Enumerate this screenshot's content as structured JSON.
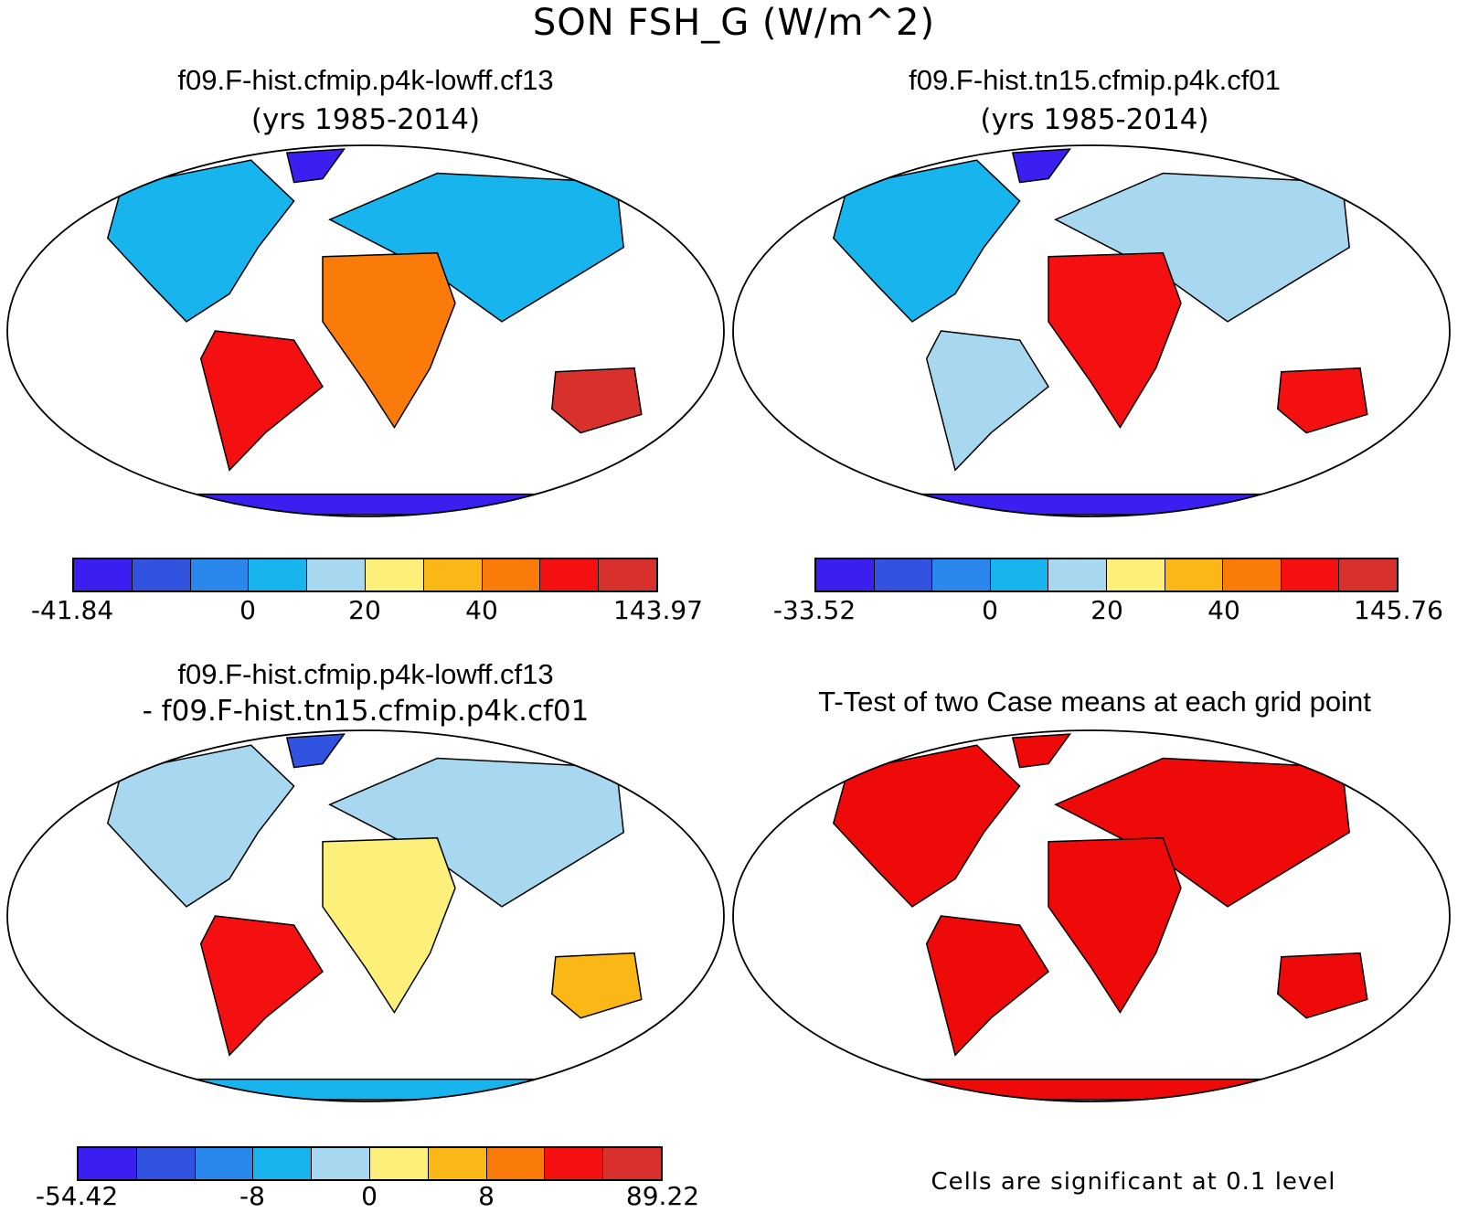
{
  "main_title": "SON FSH_G (W/m^2)",
  "panels": [
    {
      "title": "f09.F-hist.cfmip.p4k-lowff.cf13",
      "subtitle": "(yrs 1985-2014)",
      "colorbar_labels": [
        "-41.84",
        "0",
        "20",
        "40",
        "143.97"
      ]
    },
    {
      "title": "f09.F-hist.tn15.cfmip.p4k.cf01",
      "subtitle": "(yrs 1985-2014)",
      "colorbar_labels": [
        "-33.52",
        "0",
        "20",
        "40",
        "145.76"
      ]
    },
    {
      "title": "f09.F-hist.cfmip.p4k-lowff.cf13",
      "subtitle": "- f09.F-hist.tn15.cfmip.p4k.cf01",
      "colorbar_labels": [
        "-54.42",
        "-8",
        "0",
        "8",
        "89.22"
      ]
    },
    {
      "title": "T-Test of two Case means at each grid point",
      "subtitle": "",
      "note": "Cells are significant at 0.1 level"
    }
  ],
  "colors": {
    "palette": [
      "#3a1ff0",
      "#3252e0",
      "#2a87ec",
      "#17b4ee",
      "#a8d8f0",
      "#fdf07a",
      "#fbb716",
      "#fa7a0a",
      "#f41010",
      "#d8302c"
    ],
    "significant": "#ef0a0a"
  }
}
